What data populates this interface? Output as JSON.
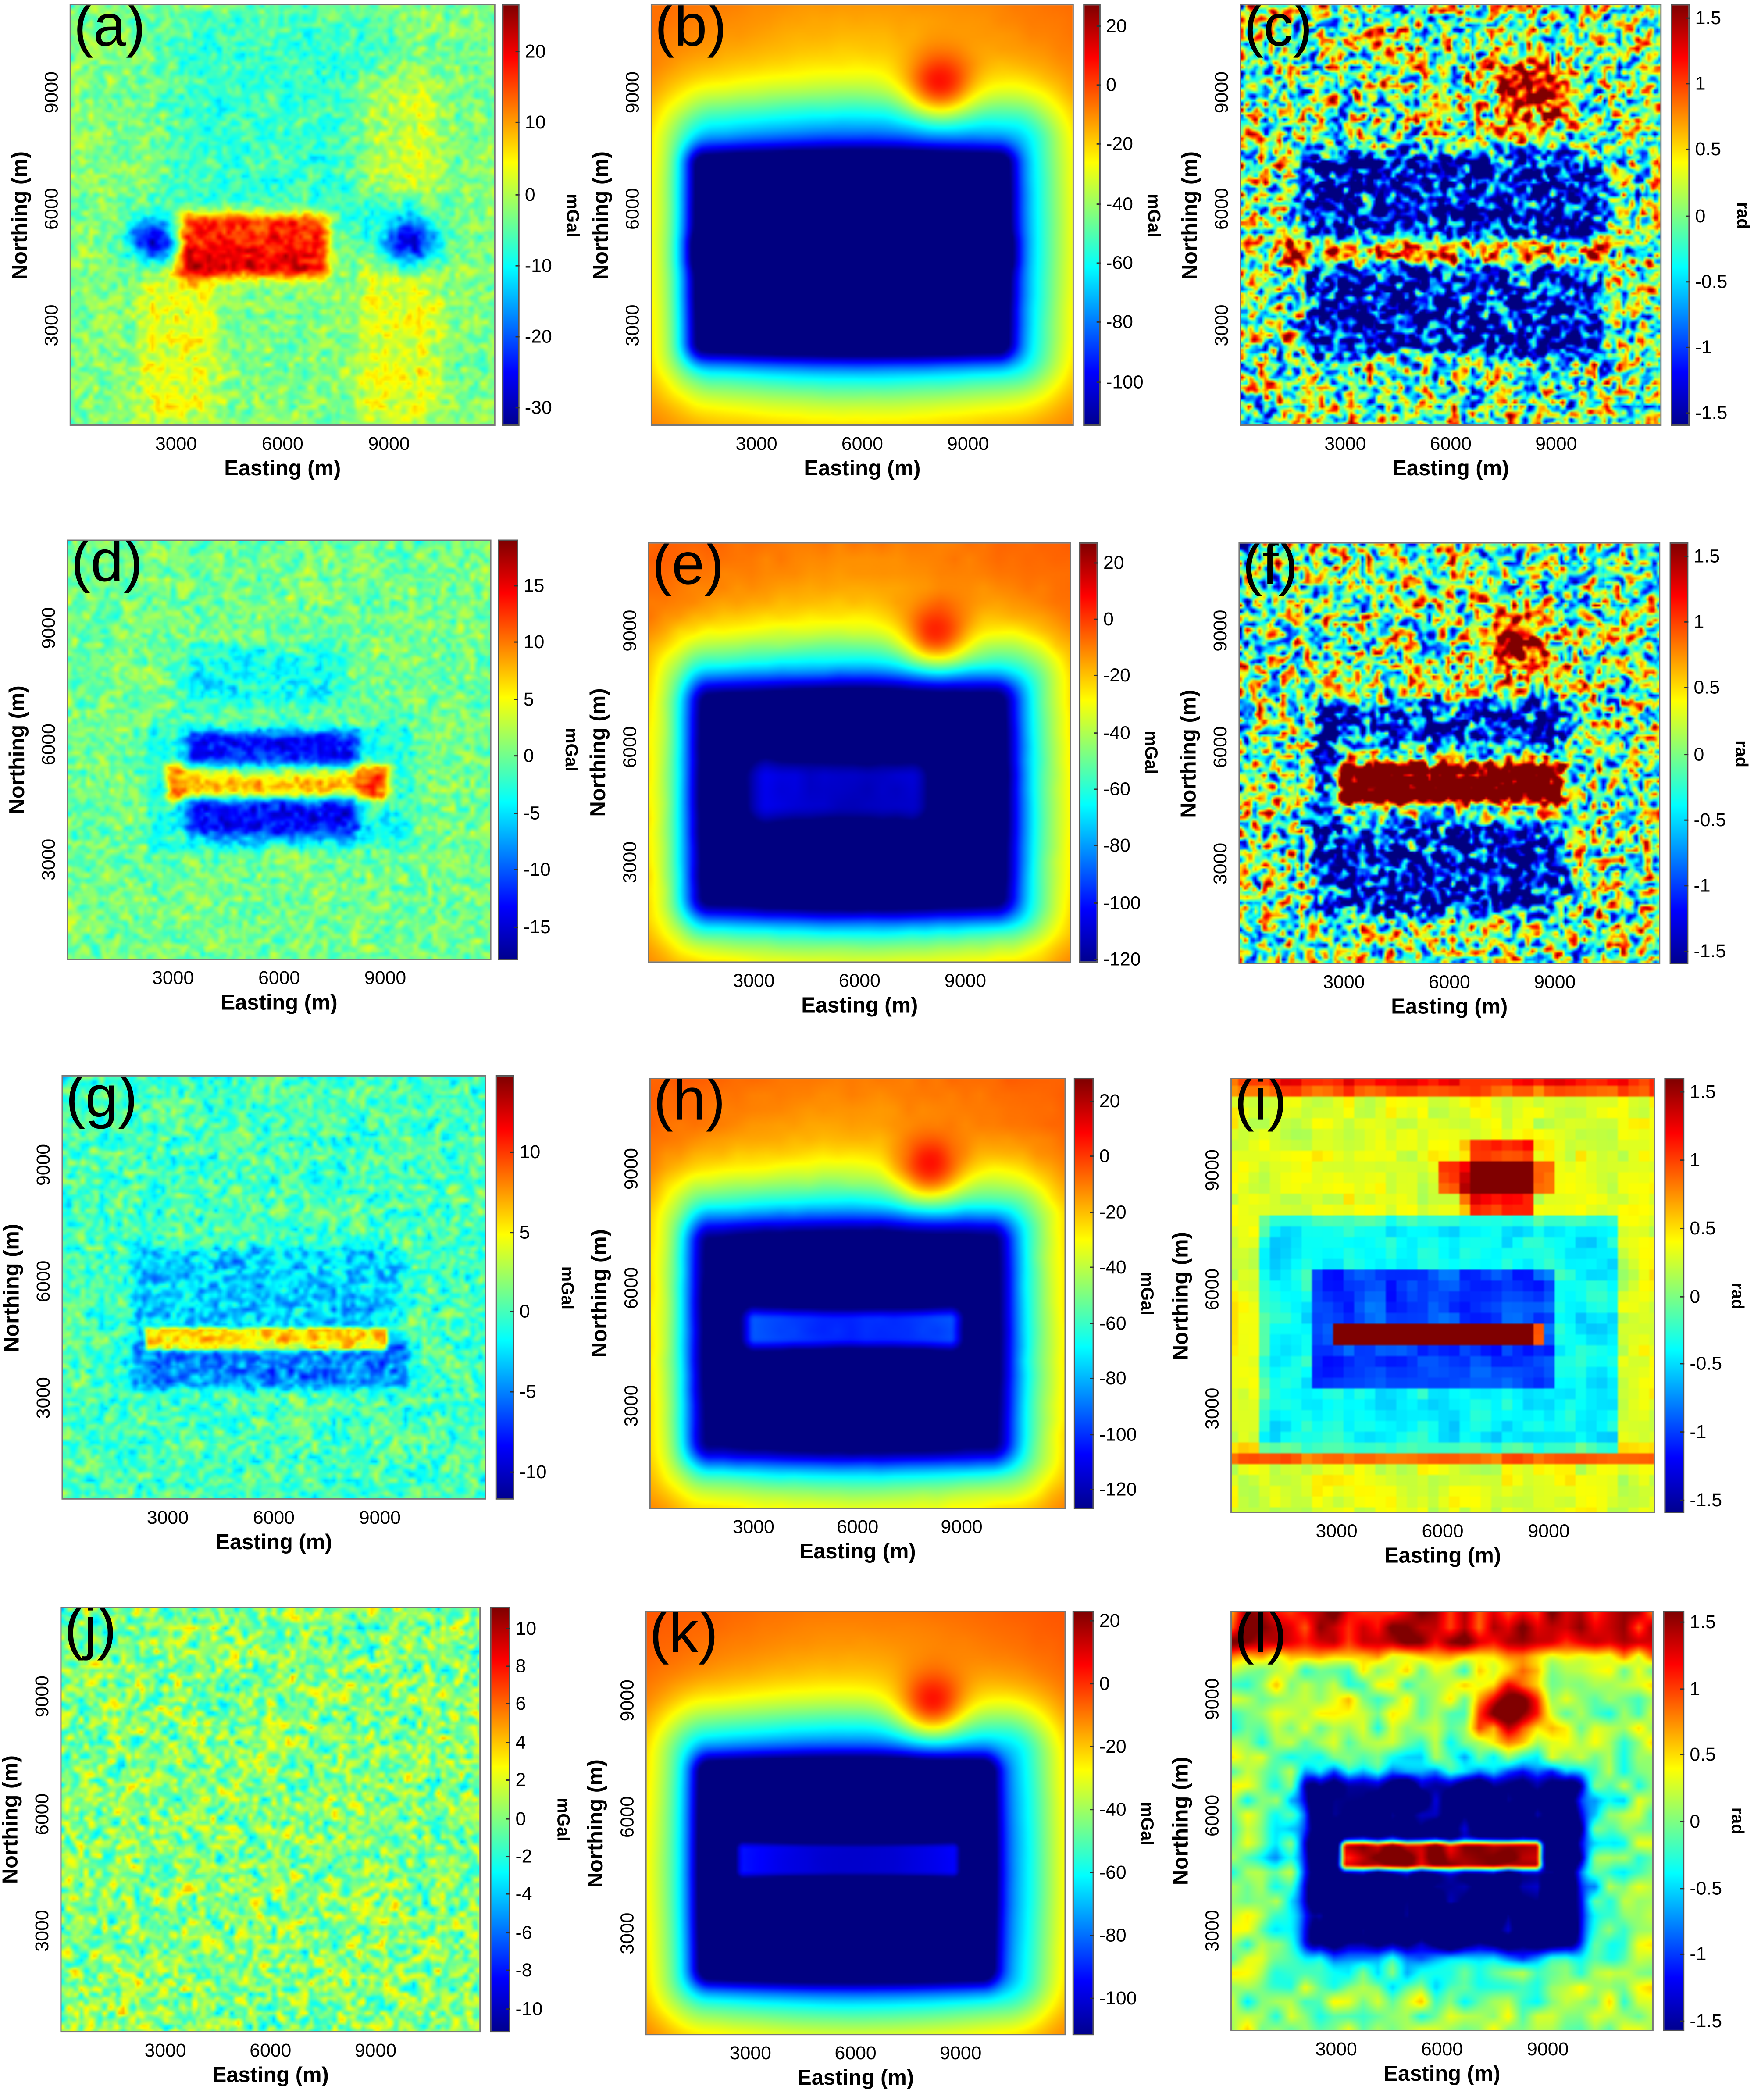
{
  "chart_data": [
    {
      "type": "heatmap",
      "title": "(a)",
      "xlabel": "Easting (m)",
      "ylabel": "Northing (m)",
      "xticks": [
        3000,
        6000,
        9000
      ],
      "yticks": [
        3000,
        6000,
        9000
      ],
      "xlim": [
        0,
        12000
      ],
      "ylim": [
        400,
        11300
      ],
      "colormap": "jet",
      "colorbar_label": "mGal",
      "clim": [
        -32.6,
        26.6
      ],
      "colorbar_ticks": [
        20,
        10,
        0,
        -10,
        -20,
        -30
      ]
    },
    {
      "type": "heatmap",
      "title": "(b)",
      "xlabel": "Easting (m)",
      "ylabel": "Northing (m)",
      "xticks": [
        3000,
        6000,
        9000
      ],
      "yticks": [
        3000,
        6000,
        9000
      ],
      "xlim": [
        0,
        12000
      ],
      "ylim": [
        400,
        11300
      ],
      "colormap": "jet",
      "colorbar_label": "mGal",
      "clim": [
        -115,
        27
      ],
      "colorbar_ticks": [
        20,
        0,
        -20,
        -40,
        -60,
        -80,
        -100
      ]
    },
    {
      "type": "heatmap",
      "title": "(c)",
      "xlabel": "Easting (m)",
      "ylabel": "Northing (m)",
      "xticks": [
        3000,
        6000,
        9000
      ],
      "yticks": [
        3000,
        6000,
        9000
      ],
      "xlim": [
        0,
        12000
      ],
      "ylim": [
        400,
        11300
      ],
      "colormap": "jet",
      "colorbar_label": "rad",
      "clim": [
        -1.6,
        1.6
      ],
      "colorbar_ticks": [
        1.5,
        1,
        0.5,
        0,
        -0.5,
        -1,
        -1.5
      ]
    },
    {
      "type": "heatmap",
      "title": "(d)",
      "xlabel": "Easting (m)",
      "ylabel": "Northing (m)",
      "xticks": [
        3000,
        6000,
        9000
      ],
      "yticks": [
        3000,
        6000,
        9000
      ],
      "xlim": [
        0,
        12000
      ],
      "ylim": [
        400,
        11300
      ],
      "colormap": "jet",
      "colorbar_label": "mGal",
      "clim": [
        -18,
        19
      ],
      "colorbar_ticks": [
        15,
        10,
        5,
        0,
        -5,
        -10,
        -15
      ]
    },
    {
      "type": "heatmap",
      "title": "(e)",
      "xlabel": "Easting (m)",
      "ylabel": "Northing (m)",
      "xticks": [
        3000,
        6000,
        9000
      ],
      "yticks": [
        3000,
        6000,
        9000
      ],
      "xlim": [
        0,
        12000
      ],
      "ylim": [
        400,
        11300
      ],
      "colormap": "jet",
      "colorbar_label": "mGal",
      "clim": [
        -121.5,
        27
      ],
      "colorbar_ticks": [
        20,
        0,
        -20,
        -40,
        -60,
        -80,
        -100,
        -120
      ]
    },
    {
      "type": "heatmap",
      "title": "(f)",
      "xlabel": "Easting (m)",
      "ylabel": "Northing (m)",
      "xticks": [
        3000,
        6000,
        9000
      ],
      "yticks": [
        3000,
        6000,
        9000
      ],
      "xlim": [
        0,
        12000
      ],
      "ylim": [
        400,
        11300
      ],
      "colormap": "jet",
      "colorbar_label": "rad",
      "clim": [
        -1.6,
        1.6
      ],
      "colorbar_ticks": [
        1.5,
        1,
        0.5,
        0,
        -0.5,
        -1,
        -1.5
      ]
    },
    {
      "type": "heatmap",
      "title": "(g)",
      "xlabel": "Easting (m)",
      "ylabel": "Northing (m)",
      "xticks": [
        3000,
        6000,
        9000
      ],
      "yticks": [
        3000,
        6000,
        9000
      ],
      "xlim": [
        0,
        12000
      ],
      "ylim": [
        400,
        11300
      ],
      "colormap": "jet",
      "colorbar_label": "mGal",
      "clim": [
        -11.8,
        14.8
      ],
      "colorbar_ticks": [
        10,
        5,
        0,
        -5,
        -10
      ]
    },
    {
      "type": "heatmap",
      "title": "(h)",
      "xlabel": "Easting (m)",
      "ylabel": "Northing (m)",
      "xticks": [
        3000,
        6000,
        9000
      ],
      "yticks": [
        3000,
        6000,
        9000
      ],
      "xlim": [
        0,
        12000
      ],
      "ylim": [
        400,
        11300
      ],
      "colormap": "jet",
      "colorbar_label": "mGal",
      "clim": [
        -127,
        28
      ],
      "colorbar_ticks": [
        20,
        0,
        -20,
        -40,
        -60,
        -80,
        -100,
        -120
      ]
    },
    {
      "type": "heatmap",
      "title": "(i)",
      "xlabel": "Easting (m)",
      "ylabel": "Northing (m)",
      "xticks": [
        3000,
        6000,
        9000
      ],
      "yticks": [
        3000,
        6000,
        9000
      ],
      "xlim": [
        0,
        12000
      ],
      "ylim": [
        400,
        11300
      ],
      "colormap": "jet",
      "colorbar_label": "rad",
      "clim": [
        -1.6,
        1.6
      ],
      "colorbar_ticks": [
        1.5,
        1,
        0.5,
        0,
        -0.5,
        -1,
        -1.5
      ]
    },
    {
      "type": "heatmap",
      "title": "(j)",
      "xlabel": "Easting (m)",
      "ylabel": "Northing (m)",
      "xticks": [
        3000,
        6000,
        9000
      ],
      "yticks": [
        3000,
        6000,
        9000
      ],
      "xlim": [
        0,
        12000
      ],
      "ylim": [
        400,
        11300
      ],
      "colormap": "jet",
      "colorbar_label": "mGal",
      "clim": [
        -11.3,
        11.1
      ],
      "colorbar_ticks": [
        10,
        8,
        6,
        4,
        2,
        0,
        -2,
        -4,
        -6,
        -8,
        -10
      ]
    },
    {
      "type": "heatmap",
      "title": "(k)",
      "xlabel": "Easting (m)",
      "ylabel": "Northing (m)",
      "xticks": [
        3000,
        6000,
        9000
      ],
      "yticks": [
        3000,
        6000,
        9000
      ],
      "xlim": [
        0,
        12000
      ],
      "ylim": [
        400,
        11300
      ],
      "colormap": "jet",
      "colorbar_label": "mGal",
      "clim": [
        -112,
        23
      ],
      "colorbar_ticks": [
        20,
        0,
        -20,
        -40,
        -60,
        -80,
        -100
      ]
    },
    {
      "type": "heatmap",
      "title": "(l)",
      "xlabel": "Easting (m)",
      "ylabel": "Northing (m)",
      "xticks": [
        3000,
        6000,
        9000
      ],
      "yticks": [
        3000,
        6000,
        9000
      ],
      "xlim": [
        0,
        12000
      ],
      "ylim": [
        400,
        11300
      ],
      "colormap": "jet",
      "colorbar_label": "rad",
      "clim": [
        -1.58,
        1.58
      ],
      "colorbar_ticks": [
        1.5,
        1,
        0.5,
        0,
        -0.5,
        -1,
        -1.5
      ]
    }
  ]
}
